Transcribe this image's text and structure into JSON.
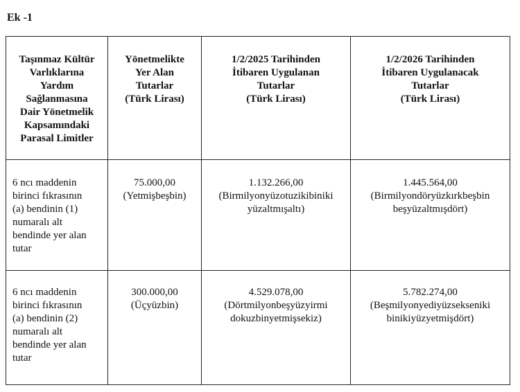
{
  "title": "Ek -1",
  "table": {
    "headers": [
      [
        "Taşınmaz Kültür",
        "Varlıklarına",
        "Yardım",
        "Sağlanmasına",
        "Dair Yönetmelik",
        "Kapsamındaki",
        "Parasal Limitler"
      ],
      [
        "Yönetmelikte",
        "Yer Alan",
        "Tutarlar",
        "(Türk Lirası)"
      ],
      [
        "1/2/2025 Tarihinden",
        "İtibaren Uygulanan",
        "Tutarlar",
        "(Türk Lirası)"
      ],
      [
        "1/2/2026 Tarihinden",
        "İtibaren Uygulanacak",
        "Tutarlar",
        "(Türk Lirası)"
      ]
    ],
    "rows": [
      [
        [
          "6 ncı maddenin",
          "birinci fıkrasının",
          "(a) bendinin (1)",
          "numaralı alt",
          "bendinde yer alan",
          "tutar"
        ],
        [
          "75.000,00",
          "(Yetmişbeşbin)"
        ],
        [
          "1.132.266,00",
          "(Birmilyonyüzotuzikibiniki",
          "yüzaltmışaltı)"
        ],
        [
          "1.445.564,00",
          "(Birmilyondöryüzkırkbeşbin",
          "beşyüzaltmışdört)"
        ]
      ],
      [
        [
          "6 ncı maddenin",
          "birinci fıkrasının",
          "(a) bendinin (2)",
          "numaralı alt",
          "bendinde yer alan",
          "tutar"
        ],
        [
          "300.000,00",
          "(Üçyüzbin)"
        ],
        [
          "4.529.078,00",
          "(Dörtmilyonbeşyüzyirmi",
          "dokuzbinyetmişsekiz)"
        ],
        [
          "5.782.274,00",
          "(Beşmilyonyediyüzsekseniki",
          "binikiyüzyetmişdört)"
        ]
      ]
    ]
  }
}
